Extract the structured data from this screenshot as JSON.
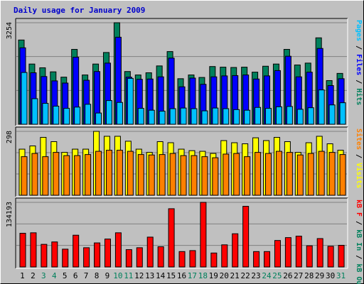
{
  "title": "Daily usage for January 2009",
  "colors": {
    "title": "#0000cc",
    "hits": "#00805c",
    "files": "#0000ff",
    "pages": "#00c0ff",
    "visits": "#ffff00",
    "sites": "#ff8000",
    "kbytes": "#ff0000",
    "day_default": "#000000",
    "day_weekend": "#00805c",
    "panel_bg": "#c0c0c0"
  },
  "chart_data": [
    {
      "type": "bar",
      "title": "Daily usage for January 2009",
      "categories": [
        "1",
        "2",
        "3",
        "4",
        "5",
        "6",
        "7",
        "8",
        "9",
        "10",
        "11",
        "12",
        "13",
        "14",
        "15",
        "16",
        "17",
        "18",
        "19",
        "20",
        "21",
        "22",
        "23",
        "24",
        "25",
        "26",
        "27",
        "28",
        "29",
        "30",
        "31"
      ],
      "weekend_days": [
        "3",
        "4",
        "10",
        "11",
        "17",
        "18",
        "24",
        "25",
        "31"
      ],
      "ymax_label": "3254",
      "ylim": [
        0,
        3254
      ],
      "grid": true,
      "right_axis_labels": [
        {
          "text": "Pages",
          "color": "#00c0ff"
        },
        {
          "text": " / ",
          "color": "#000000"
        },
        {
          "text": "Files",
          "color": "#0000ff"
        },
        {
          "text": " / ",
          "color": "#000000"
        },
        {
          "text": "Hits",
          "color": "#00805c"
        }
      ],
      "series": [
        {
          "name": "Hits",
          "color": "#00805c",
          "values": [
            2700,
            1930,
            1810,
            1680,
            1510,
            2400,
            1580,
            1930,
            2300,
            3254,
            1690,
            1580,
            1650,
            1870,
            2330,
            1460,
            1580,
            1500,
            1850,
            1830,
            1820,
            1830,
            1670,
            1860,
            1930,
            2400,
            1900,
            1960,
            2770,
            1400,
            1630
          ]
        },
        {
          "name": "Files",
          "color": "#0000ff",
          "values": [
            2450,
            1650,
            1530,
            1390,
            1320,
            2150,
            1410,
            1690,
            1960,
            2790,
            1510,
            1440,
            1450,
            1520,
            2120,
            1200,
            1480,
            1280,
            1520,
            1550,
            1560,
            1580,
            1450,
            1550,
            1720,
            2180,
            1520,
            1670,
            2430,
            1240,
            1460
          ]
        },
        {
          "name": "Pages",
          "color": "#00c0ff",
          "values": [
            1660,
            820,
            670,
            580,
            510,
            550,
            640,
            360,
            760,
            700,
            1470,
            510,
            450,
            420,
            500,
            520,
            500,
            430,
            520,
            500,
            470,
            450,
            540,
            510,
            560,
            570,
            480,
            530,
            1100,
            620,
            690
          ]
        }
      ]
    },
    {
      "type": "bar",
      "ymax_label": "298",
      "ylim": [
        0,
        298
      ],
      "grid": true,
      "right_axis_labels": [
        {
          "text": "Sites",
          "color": "#ff8000"
        },
        {
          "text": " / ",
          "color": "#000000"
        },
        {
          "text": "Visits",
          "color": "#ffff00"
        }
      ],
      "series": [
        {
          "name": "Visits",
          "color": "#ffff00",
          "values": [
            215,
            230,
            270,
            250,
            200,
            215,
            215,
            298,
            275,
            275,
            252,
            215,
            200,
            250,
            245,
            215,
            208,
            205,
            195,
            255,
            245,
            240,
            268,
            255,
            270,
            250,
            200,
            245,
            275,
            240,
            210
          ]
        },
        {
          "name": "Sites",
          "color": "#ff8000",
          "values": [
            180,
            195,
            180,
            200,
            185,
            185,
            190,
            205,
            210,
            210,
            205,
            190,
            188,
            190,
            195,
            185,
            185,
            180,
            175,
            192,
            195,
            180,
            200,
            195,
            205,
            200,
            188,
            195,
            205,
            200,
            190
          ]
        }
      ]
    },
    {
      "type": "bar",
      "ymax_label": "134193",
      "ylim": [
        0,
        134193
      ],
      "grid": true,
      "right_axis_labels": [
        {
          "text": "kB F",
          "color": "#ff0000"
        },
        {
          "text": " / ",
          "color": "#000000"
        },
        {
          "text": "kB In",
          "color": "#00805c"
        },
        {
          "text": " / ",
          "color": "#000000"
        },
        {
          "text": "kB Out",
          "color": "#00805c"
        }
      ],
      "series": [
        {
          "name": "kB F",
          "color": "#ff0000",
          "values": [
            70000,
            71000,
            47000,
            52000,
            37000,
            66000,
            40000,
            50000,
            58000,
            71000,
            36000,
            40000,
            62000,
            42000,
            121000,
            32000,
            34000,
            134193,
            29000,
            46000,
            69000,
            126000,
            32000,
            32000,
            55000,
            61000,
            64000,
            44000,
            59000,
            43000,
            45000
          ]
        }
      ]
    }
  ]
}
